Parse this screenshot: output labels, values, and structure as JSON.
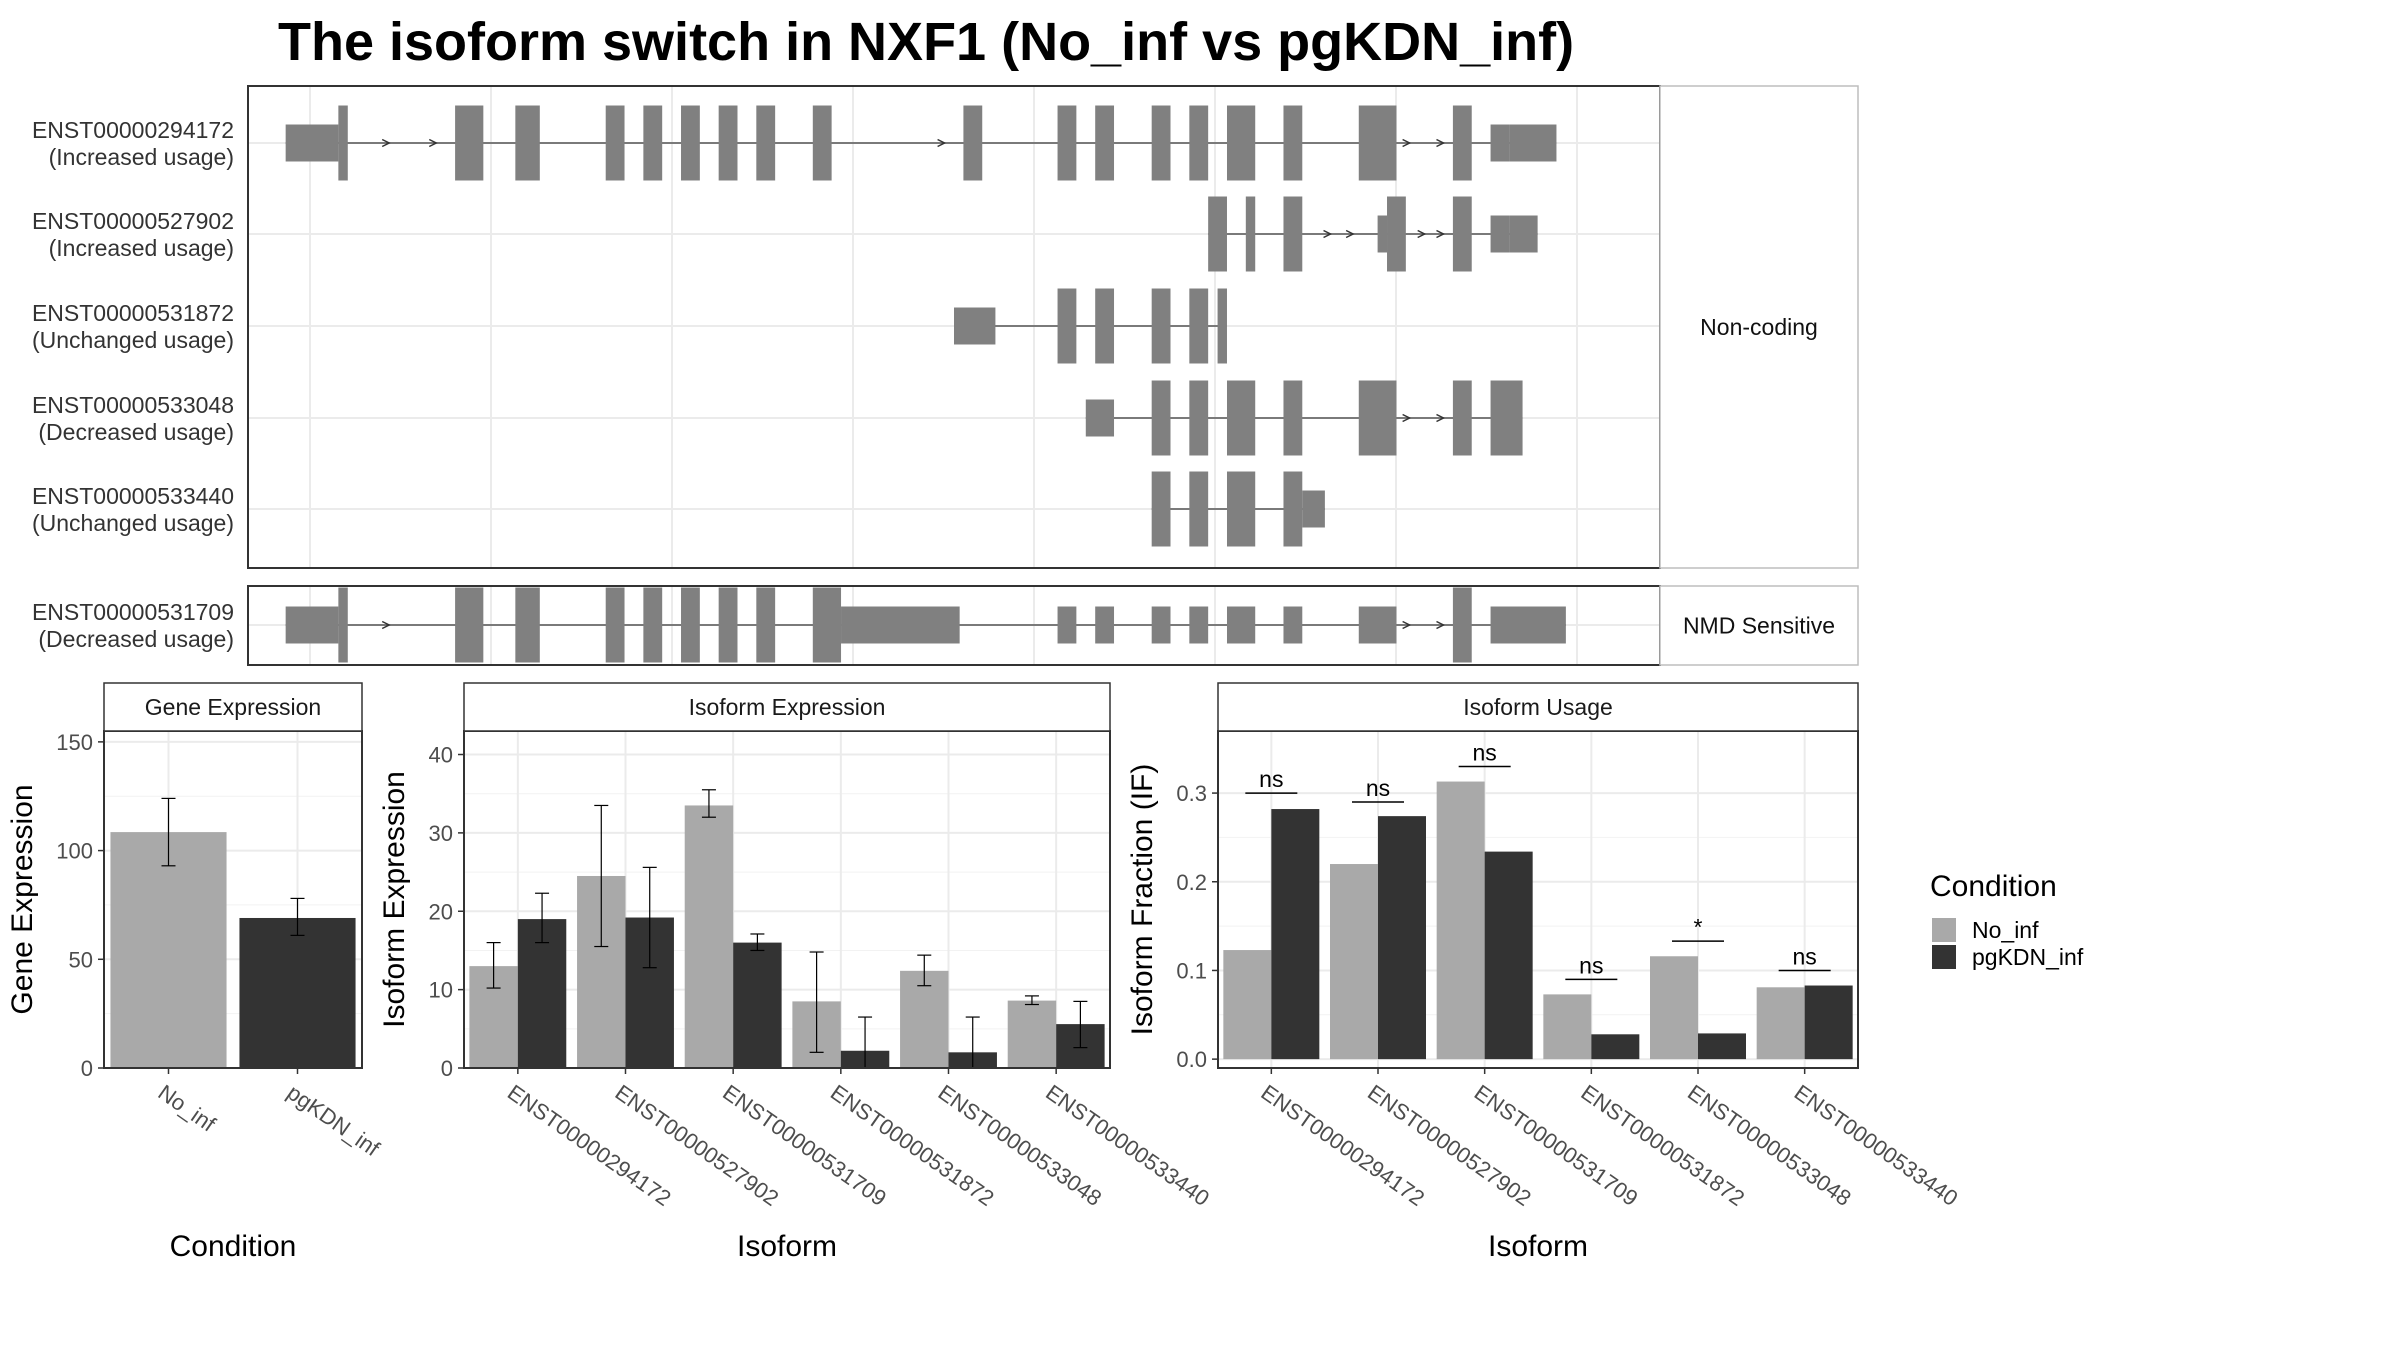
{
  "title": "The isoform switch in NXF1 (No_inf vs pgKDN_inf)",
  "colors": {
    "no_inf": "#a9a9a9",
    "pgkdn_inf": "#333333",
    "exon": "#808080",
    "grid": "#ebebeb",
    "panel_border": "#333333"
  },
  "chart_data": [
    {
      "type": "gene-structure",
      "panels": [
        {
          "category": "Non-coding",
          "transcripts": [
            {
              "id": "ENST00000294172",
              "usage": "(Increased usage)",
              "exons": [
                [
                  2,
                  4.8,
                  "s"
                ],
                [
                  4.8,
                  5.3,
                  "t"
                ],
                [
                  11,
                  12.5,
                  "t"
                ],
                [
                  14.2,
                  15.5,
                  "t"
                ],
                [
                  19,
                  20,
                  "t"
                ],
                [
                  21,
                  22,
                  "t"
                ],
                [
                  23,
                  24,
                  "t"
                ],
                [
                  25,
                  26,
                  "t"
                ],
                [
                  27,
                  28,
                  "t"
                ],
                [
                  30,
                  31,
                  "t"
                ],
                [
                  38,
                  39,
                  "t"
                ],
                [
                  43,
                  44,
                  "t"
                ],
                [
                  45,
                  46,
                  "t"
                ],
                [
                  48,
                  49,
                  "t"
                ],
                [
                  50,
                  51,
                  "t"
                ],
                [
                  52,
                  53.5,
                  "t"
                ],
                [
                  55,
                  56,
                  "t"
                ],
                [
                  59,
                  61,
                  "t"
                ],
                [
                  64,
                  65,
                  "t"
                ],
                [
                  66,
                  67,
                  "s"
                ],
                [
                  67,
                  69.5,
                  "s"
                ]
              ],
              "arrows": [
                7.5,
                10,
                37,
                61.7,
                63.5
              ]
            },
            {
              "id": "ENST00000527902",
              "usage": "(Increased usage)",
              "exons": [
                [
                  51,
                  52,
                  "t"
                ],
                [
                  53,
                  53.5,
                  "t"
                ],
                [
                  55,
                  56,
                  "t"
                ],
                [
                  60,
                  60.5,
                  "s"
                ],
                [
                  60.5,
                  61.5,
                  "t"
                ],
                [
                  64,
                  65,
                  "t"
                ],
                [
                  66,
                  67,
                  "s"
                ],
                [
                  67,
                  68.5,
                  "s"
                ]
              ],
              "arrows": [
                57.5,
                58.7,
                62.5,
                63.5
              ]
            },
            {
              "id": "ENST00000531872",
              "usage": "(Unchanged usage)",
              "exons": [
                [
                  37.5,
                  39.7,
                  "s"
                ],
                [
                  43,
                  44,
                  "t"
                ],
                [
                  45,
                  46,
                  "t"
                ],
                [
                  48,
                  49,
                  "t"
                ],
                [
                  50,
                  51,
                  "t"
                ],
                [
                  51.5,
                  52,
                  "t"
                ]
              ],
              "arrows": []
            },
            {
              "id": "ENST00000533048",
              "usage": "(Decreased usage)",
              "exons": [
                [
                  44.5,
                  46,
                  "s"
                ],
                [
                  48,
                  49,
                  "t"
                ],
                [
                  50,
                  51,
                  "t"
                ],
                [
                  52,
                  53.5,
                  "t"
                ],
                [
                  55,
                  56,
                  "t"
                ],
                [
                  59,
                  61,
                  "t"
                ],
                [
                  64,
                  65,
                  "t"
                ],
                [
                  66,
                  67.7,
                  "t"
                ]
              ],
              "arrows": [
                61.7,
                63.5
              ]
            },
            {
              "id": "ENST00000533440",
              "usage": "(Unchanged usage)",
              "exons": [
                [
                  48,
                  49,
                  "t"
                ],
                [
                  50,
                  51,
                  "t"
                ],
                [
                  52,
                  53.5,
                  "t"
                ],
                [
                  55,
                  56,
                  "t"
                ],
                [
                  56,
                  57.2,
                  "s"
                ]
              ],
              "arrows": []
            }
          ]
        },
        {
          "category": "NMD Sensitive",
          "transcripts": [
            {
              "id": "ENST00000531709",
              "usage": "(Decreased usage)",
              "exons": [
                [
                  2,
                  4.8,
                  "s"
                ],
                [
                  4.8,
                  5.3,
                  "t"
                ],
                [
                  11,
                  12.5,
                  "t"
                ],
                [
                  14.2,
                  15.5,
                  "t"
                ],
                [
                  19,
                  20,
                  "t"
                ],
                [
                  21,
                  22,
                  "t"
                ],
                [
                  23,
                  24,
                  "t"
                ],
                [
                  25,
                  26,
                  "t"
                ],
                [
                  27,
                  28,
                  "t"
                ],
                [
                  30,
                  31.5,
                  "t"
                ],
                [
                  31.5,
                  37.8,
                  "s"
                ],
                [
                  43,
                  44,
                  "s"
                ],
                [
                  45,
                  46,
                  "s"
                ],
                [
                  48,
                  49,
                  "s"
                ],
                [
                  50,
                  51,
                  "s"
                ],
                [
                  52,
                  53.5,
                  "s"
                ],
                [
                  55,
                  56,
                  "s"
                ],
                [
                  59,
                  61,
                  "s"
                ],
                [
                  64,
                  65,
                  "t"
                ],
                [
                  66,
                  70,
                  "s"
                ]
              ],
              "arrows": [
                7.5,
                61.7,
                63.5
              ]
            }
          ]
        }
      ]
    },
    {
      "type": "bar",
      "title": "Gene Expression",
      "xlabel": "Condition",
      "ylabel": "Gene Expression",
      "ylim": [
        0,
        155
      ],
      "yticks": [
        0,
        50,
        100,
        150
      ],
      "categories": [
        "No_inf",
        "pgKDN_inf"
      ],
      "series": [
        {
          "name": "No_inf",
          "values": [
            108.5,
            null
          ],
          "error_low": [
            93,
            null
          ],
          "error_high": [
            124,
            null
          ]
        },
        {
          "name": "pgKDN_inf",
          "values": [
            null,
            69
          ],
          "error_low": [
            null,
            61
          ],
          "error_high": [
            null,
            78
          ]
        }
      ]
    },
    {
      "type": "bar",
      "title": "Isoform Expression",
      "xlabel": "Isoform",
      "ylabel": "Isoform Expression",
      "ylim": [
        0,
        43
      ],
      "yticks": [
        0,
        10,
        20,
        30,
        40
      ],
      "categories": [
        "ENST00000294172",
        "ENST00000527902",
        "ENST00000531709",
        "ENST00000531872",
        "ENST00000533048",
        "ENST00000533440"
      ],
      "series": [
        {
          "name": "No_inf",
          "values": [
            13,
            24.5,
            33.5,
            8.5,
            12.4,
            8.6
          ],
          "error_low": [
            10.2,
            15.5,
            32,
            2,
            10.5,
            8.1
          ],
          "error_high": [
            16,
            33.5,
            35.5,
            14.8,
            14.4,
            9.2
          ]
        },
        {
          "name": "pgKDN_inf",
          "values": [
            19,
            19.2,
            16,
            2.2,
            2,
            5.6
          ],
          "error_low": [
            16,
            12.8,
            15,
            0,
            0,
            2.6
          ],
          "error_high": [
            22.3,
            25.6,
            17.1,
            6.5,
            6.5,
            8.5
          ]
        }
      ]
    },
    {
      "type": "bar",
      "title": "Isoform Usage",
      "xlabel": "Isoform",
      "ylabel": "Isoform Fraction (IF)",
      "ylim": [
        -0.01,
        0.37
      ],
      "yticks": [
        0.0,
        0.1,
        0.2,
        0.3
      ],
      "ytick_labels": [
        "0.0",
        "0.1",
        "0.2",
        "0.3"
      ],
      "categories": [
        "ENST00000294172",
        "ENST00000527902",
        "ENST00000531709",
        "ENST00000531872",
        "ENST00000533048",
        "ENST00000533440"
      ],
      "series": [
        {
          "name": "No_inf",
          "values": [
            0.123,
            0.22,
            0.313,
            0.073,
            0.116,
            0.081
          ]
        },
        {
          "name": "pgKDN_inf",
          "values": [
            0.282,
            0.274,
            0.234,
            0.028,
            0.029,
            0.083
          ]
        }
      ],
      "significance": [
        {
          "label": "ns",
          "y": 0.3
        },
        {
          "label": "ns",
          "y": 0.29
        },
        {
          "label": "ns",
          "y": 0.33
        },
        {
          "label": "ns",
          "y": 0.09
        },
        {
          "label": "*",
          "y": 0.133
        },
        {
          "label": "ns",
          "y": 0.1
        }
      ]
    }
  ],
  "legend": {
    "title": "Condition",
    "items": [
      {
        "label": "No_inf",
        "color": "#a9a9a9"
      },
      {
        "label": "pgKDN_inf",
        "color": "#333333"
      }
    ]
  }
}
